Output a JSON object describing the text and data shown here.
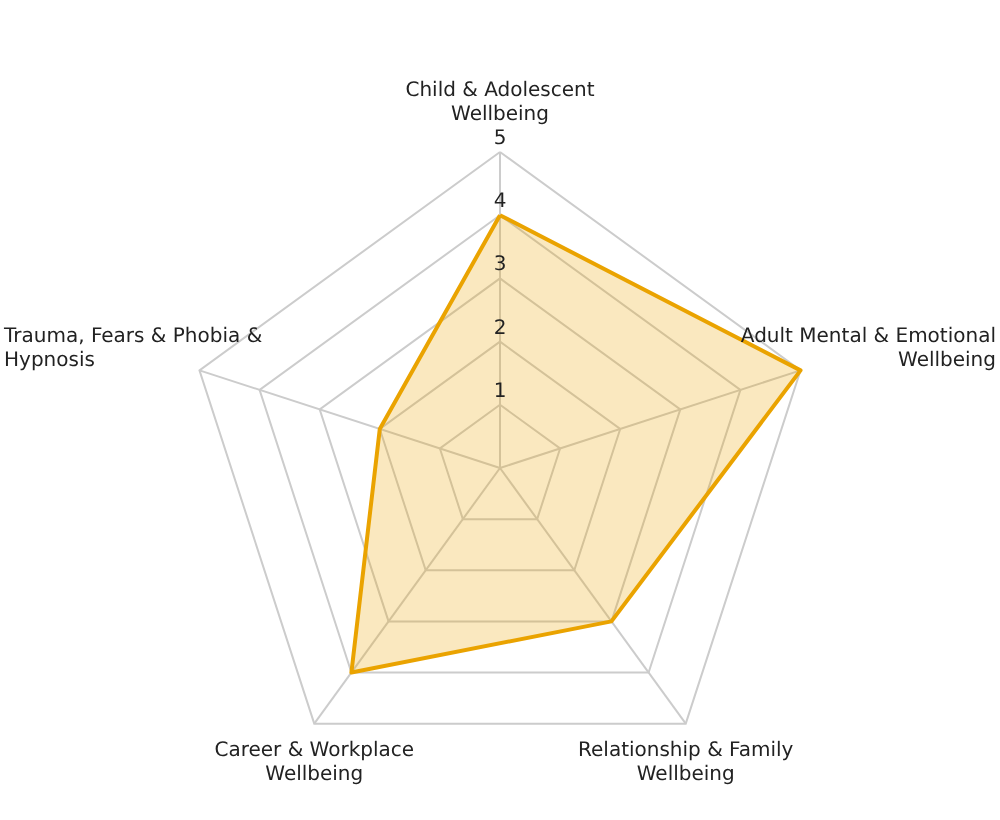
{
  "chart_data": {
    "type": "radar",
    "categories": [
      "Child & Adolescent\nWellbeing",
      "Adult Mental & Emotional\nWellbeing",
      "Relationship & Family\nWellbeing",
      "Career & Workplace\nWellbeing",
      "Trauma, Fears & Phobia &\nHypnosis"
    ],
    "series": [
      {
        "color": "#eaa300",
        "values": [
          4,
          5,
          3,
          4,
          2
        ]
      }
    ],
    "ylim": [
      0,
      5
    ],
    "yticks": [
      1,
      2,
      3,
      4,
      5
    ],
    "grid": true
  }
}
